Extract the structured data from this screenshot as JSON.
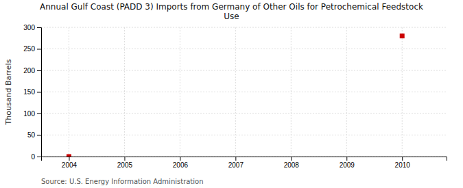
{
  "chart_data": {
    "type": "scatter",
    "title": "Annual Gulf Coast (PADD 3) Imports from Germany of Other Oils for Petrochemical Feedstock\nUse",
    "ylabel": "Thousand Barrels",
    "source": "Source: U.S. Energy Information Administration",
    "x": [
      2004,
      2010
    ],
    "values": [
      0,
      280
    ],
    "color": "#cc0000",
    "marker": "square",
    "xlim": [
      2003.5,
      2010.8
    ],
    "xticks": [
      2004,
      2005,
      2006,
      2007,
      2008,
      2009,
      2010
    ],
    "ylim": [
      0,
      300
    ],
    "yticks": [
      0,
      50,
      100,
      150,
      200,
      250,
      300
    ],
    "grid": true
  }
}
